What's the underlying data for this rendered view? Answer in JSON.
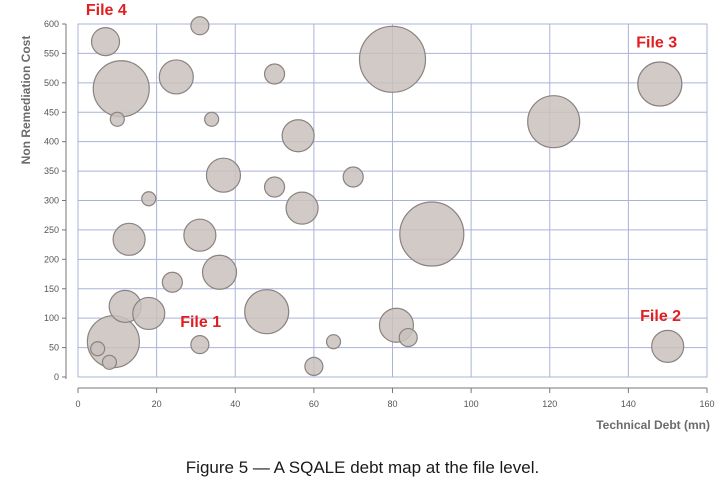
{
  "chart_data": {
    "type": "scatter",
    "xlabel": "Technical Debt (mn)",
    "ylabel": "Non Remediation Cost",
    "xlim": [
      0,
      160
    ],
    "ylim": [
      0,
      600
    ],
    "xticks": [
      0,
      20,
      40,
      60,
      80,
      100,
      120,
      140,
      160
    ],
    "yticks": [
      0,
      50,
      100,
      150,
      200,
      250,
      300,
      350,
      400,
      450,
      500,
      550,
      600
    ],
    "grid": true,
    "bubble_color": "#c9c1bd",
    "bubble_stroke": "#8a8380",
    "points": [
      {
        "x": 7,
        "y": 570,
        "size": 14
      },
      {
        "x": 31,
        "y": 597,
        "size": 9
      },
      {
        "x": 11,
        "y": 490,
        "size": 28
      },
      {
        "x": 10,
        "y": 438,
        "size": 7
      },
      {
        "x": 25,
        "y": 510,
        "size": 17
      },
      {
        "x": 34,
        "y": 438,
        "size": 7
      },
      {
        "x": 50,
        "y": 515,
        "size": 10
      },
      {
        "x": 80,
        "y": 540,
        "size": 33
      },
      {
        "x": 56,
        "y": 410,
        "size": 16
      },
      {
        "x": 37,
        "y": 343,
        "size": 17
      },
      {
        "x": 18,
        "y": 303,
        "size": 7
      },
      {
        "x": 50,
        "y": 323,
        "size": 10
      },
      {
        "x": 70,
        "y": 340,
        "size": 10
      },
      {
        "x": 57,
        "y": 287,
        "size": 16
      },
      {
        "x": 13,
        "y": 234,
        "size": 16
      },
      {
        "x": 31,
        "y": 241,
        "size": 16
      },
      {
        "x": 36,
        "y": 178,
        "size": 17
      },
      {
        "x": 24,
        "y": 161,
        "size": 10
      },
      {
        "x": 90,
        "y": 243,
        "size": 32
      },
      {
        "x": 121,
        "y": 434,
        "size": 26
      },
      {
        "x": 148,
        "y": 498,
        "size": 22
      },
      {
        "x": 12,
        "y": 120,
        "size": 16
      },
      {
        "x": 18,
        "y": 108,
        "size": 16
      },
      {
        "x": 48,
        "y": 111,
        "size": 22
      },
      {
        "x": 81,
        "y": 88,
        "size": 17
      },
      {
        "x": 84,
        "y": 67,
        "size": 9
      },
      {
        "x": 9,
        "y": 60,
        "size": 26
      },
      {
        "x": 5,
        "y": 48,
        "size": 7
      },
      {
        "x": 8,
        "y": 25,
        "size": 7
      },
      {
        "x": 31,
        "y": 55,
        "size": 9
      },
      {
        "x": 65,
        "y": 60,
        "size": 7
      },
      {
        "x": 60,
        "y": 18,
        "size": 9
      },
      {
        "x": 150,
        "y": 52,
        "size": 16
      }
    ],
    "annotations": [
      {
        "text": "File 4",
        "x": 2,
        "y": 615
      },
      {
        "text": "File 3",
        "x": 142,
        "y": 560
      },
      {
        "text": "File 1",
        "x": 26,
        "y": 85
      },
      {
        "text": "File 2",
        "x": 143,
        "y": 95
      }
    ],
    "annotation_color": "#e02020"
  },
  "caption": "Figure 5 — A SQALE debt map at the file level."
}
